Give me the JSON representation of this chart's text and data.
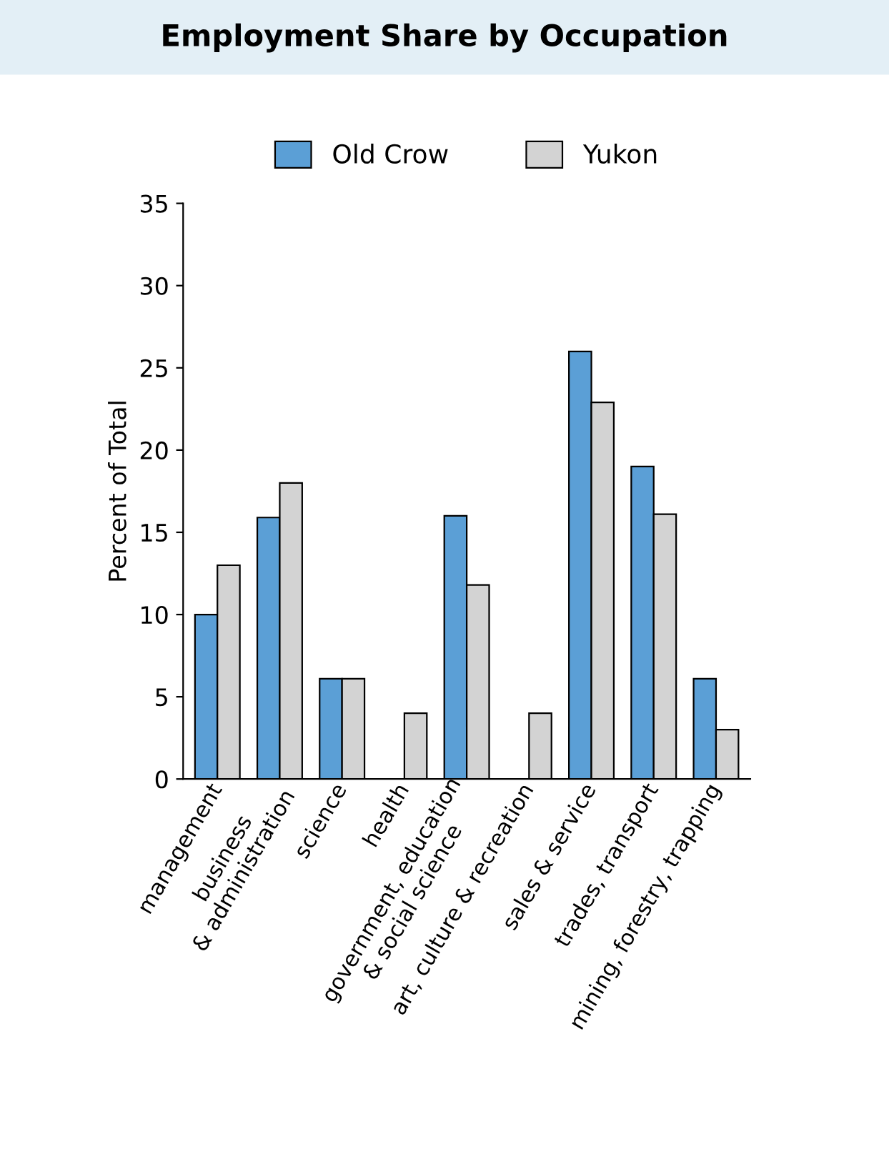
{
  "chart_data": {
    "type": "bar",
    "title": "Employment Share by Occupation",
    "ylabel": "Percent of Total",
    "categories": [
      "management",
      "business\n& administration",
      "science",
      "health",
      "government, education\n& social science",
      "art, culture & recreation",
      "sales & service",
      "trades, transport",
      "mining, forestry, trapping"
    ],
    "series": [
      {
        "name": "Old Crow",
        "color": "#5b9fd6",
        "values": [
          10,
          15.9,
          6.1,
          null,
          16,
          null,
          26,
          19,
          6.1
        ]
      },
      {
        "name": "Yukon",
        "color": "#d3d3d3",
        "values": [
          13,
          18,
          6.1,
          4,
          11.8,
          4,
          22.9,
          16.1,
          3
        ]
      }
    ],
    "ylim": [
      0,
      35
    ],
    "yticks": [
      0,
      5,
      10,
      15,
      20,
      25,
      30,
      35
    ],
    "grid": false,
    "legend": "top"
  }
}
